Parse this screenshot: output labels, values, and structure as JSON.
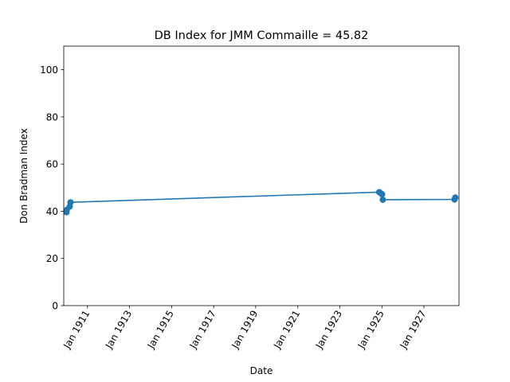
{
  "chart_data": {
    "type": "line",
    "title": "DB Index for JMM Commaille = 45.82",
    "xlabel": "Date",
    "ylabel": "Don Bradman Index",
    "x_is_date": true,
    "xlim": [
      "1909-11-15",
      "1928-09-01"
    ],
    "ylim": [
      0,
      110
    ],
    "yticks": [
      0,
      20,
      40,
      60,
      80,
      100
    ],
    "xticks": [
      {
        "date": "1911-01-01",
        "label": "Jan 1911"
      },
      {
        "date": "1913-01-01",
        "label": "Jan 1913"
      },
      {
        "date": "1915-01-01",
        "label": "Jan 1915"
      },
      {
        "date": "1917-01-01",
        "label": "Jan 1917"
      },
      {
        "date": "1919-01-01",
        "label": "Jan 1919"
      },
      {
        "date": "1921-01-01",
        "label": "Jan 1921"
      },
      {
        "date": "1923-01-01",
        "label": "Jan 1923"
      },
      {
        "date": "1925-01-01",
        "label": "Jan 1925"
      },
      {
        "date": "1927-01-01",
        "label": "Jan 1927"
      }
    ],
    "series": [
      {
        "color": "#1f77b4",
        "x": [
          "1910-01-02",
          "1910-01-07",
          "1910-02-26",
          "1910-03-12",
          "1924-11-15",
          "1924-12-20",
          "1925-01-03",
          "1925-01-17",
          "1928-06-15",
          "1928-06-29"
        ],
        "y": [
          39.6,
          40.6,
          42.0,
          43.8,
          48.1,
          47.5,
          47.2,
          44.9,
          45.0,
          45.8
        ]
      }
    ],
    "grid": false,
    "legend": "none"
  }
}
